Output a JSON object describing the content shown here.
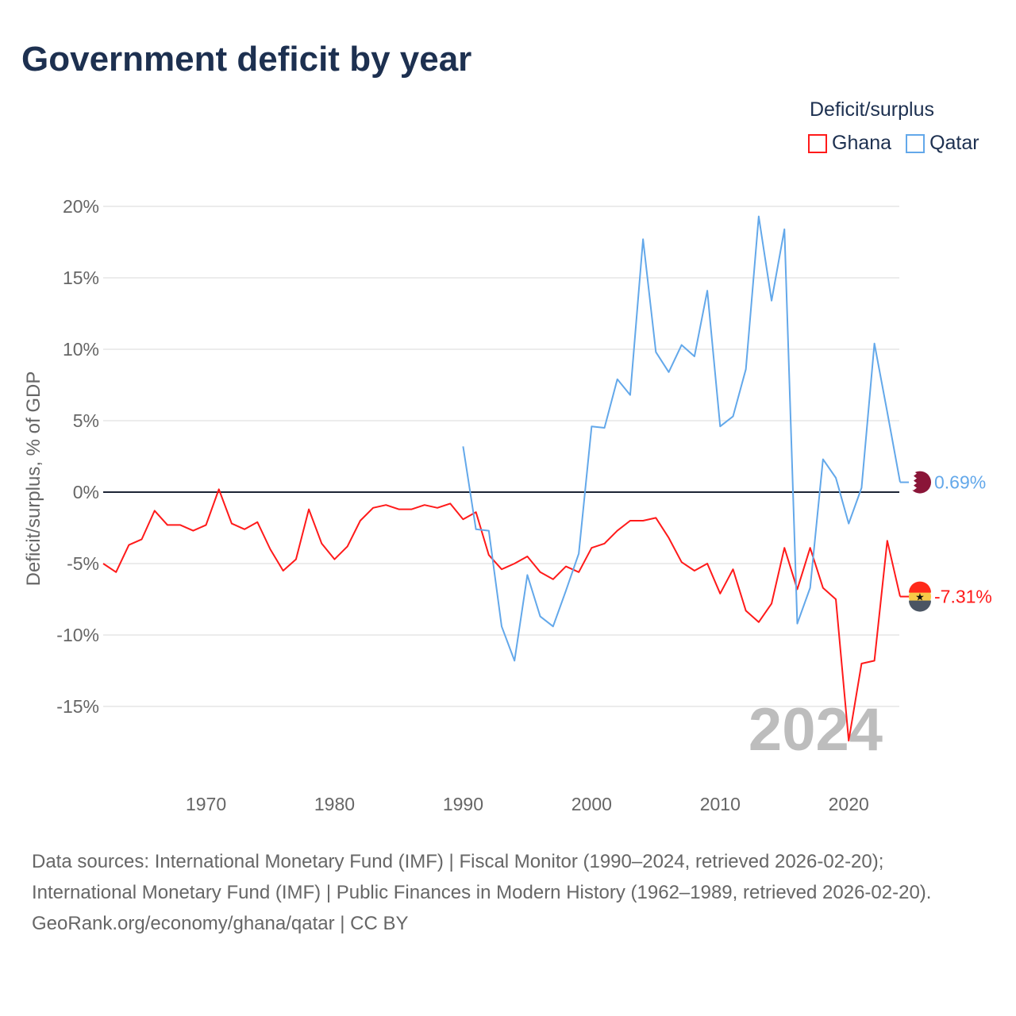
{
  "title": "Government deficit by year",
  "legend": {
    "title": "Deficit/surplus",
    "items": [
      {
        "name": "Ghana",
        "color": "#ff1a1a"
      },
      {
        "name": "Qatar",
        "color": "#63a8ea"
      }
    ]
  },
  "chart_data": {
    "type": "line",
    "title": "Government deficit by year",
    "xlabel": "",
    "ylabel": "Deficit/surplus, % of GDP",
    "xlim": [
      1962,
      2024
    ],
    "ylim": [
      -20,
      20
    ],
    "x_ticks": [
      1970,
      1980,
      1990,
      2000,
      2010,
      2020
    ],
    "y_ticks": [
      20,
      15,
      10,
      5,
      0,
      -5,
      -10,
      -15
    ],
    "y_tick_labels": [
      "20%",
      "15%",
      "10%",
      "5%",
      "0%",
      "-5%",
      "-10%",
      "-15%"
    ],
    "watermark_year": "2024",
    "grid": true,
    "legend_position": "top-right",
    "series": [
      {
        "name": "Ghana",
        "color": "#ff1a1a",
        "start_year": 1962,
        "end_label": "-7.31%",
        "values": [
          -5.0,
          -5.6,
          -3.7,
          -3.3,
          -1.3,
          -2.3,
          -2.3,
          -2.7,
          -2.3,
          0.2,
          -2.2,
          -2.6,
          -2.1,
          -4.0,
          -5.5,
          -4.7,
          -1.2,
          -3.6,
          -4.7,
          -3.8,
          -2.0,
          -1.1,
          -0.9,
          -1.2,
          -1.2,
          -0.9,
          -1.1,
          -0.8,
          -1.9,
          -1.4,
          -4.4,
          -5.4,
          -5.0,
          -4.5,
          -5.6,
          -6.1,
          -5.2,
          -5.6,
          -3.9,
          -3.6,
          -2.7,
          -2.0,
          -2.0,
          -1.8,
          -3.2,
          -4.9,
          -5.5,
          -5.0,
          -7.1,
          -5.4,
          -8.3,
          -9.1,
          -7.8,
          -3.9,
          -6.8,
          -3.9,
          -6.7,
          -7.5,
          -17.4,
          -12.0,
          -11.8,
          -3.4,
          -7.31
        ]
      },
      {
        "name": "Qatar",
        "color": "#63a8ea",
        "start_year": 1990,
        "end_label": "0.69%",
        "values": [
          3.2,
          -2.6,
          -2.7,
          -9.4,
          -11.8,
          -5.8,
          -8.7,
          -9.4,
          -6.9,
          -4.3,
          4.6,
          4.5,
          7.9,
          6.8,
          17.7,
          9.8,
          8.4,
          10.3,
          9.5,
          14.1,
          4.6,
          5.3,
          8.6,
          19.3,
          13.4,
          18.4,
          -9.2,
          -6.7,
          2.3,
          1.0,
          -2.2,
          0.3,
          10.4,
          5.6,
          0.69
        ]
      }
    ]
  },
  "footer": {
    "sources": "Data sources: International Monetary Fund (IMF) | Fiscal Monitor (1990–2024, retrieved 2026-02-20); International Monetary Fund (IMF) | Public Finances in Modern History (1962–1989, retrieved 2026-02-20).",
    "credit": "GeoRank.org/economy/ghana/qatar | CC BY"
  }
}
